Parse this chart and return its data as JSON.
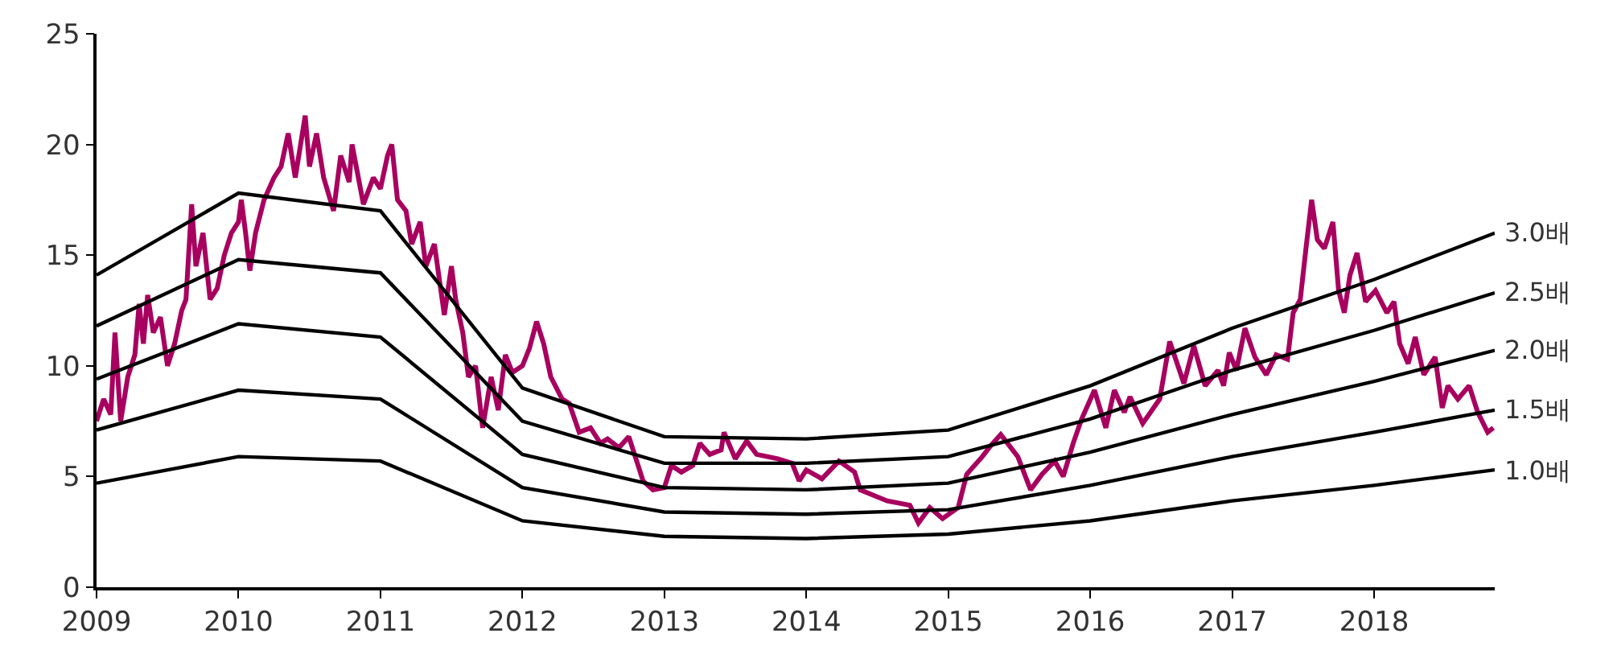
{
  "chart_data": {
    "type": "line",
    "xlim": [
      2009,
      2018.85
    ],
    "xticks": [
      2009,
      2010,
      2011,
      2012,
      2013,
      2014,
      2015,
      2016,
      2017,
      2018
    ],
    "ylim": [
      0,
      25
    ],
    "yticks": [
      0,
      5,
      10,
      15,
      20,
      25
    ],
    "legend": false,
    "marker": "none",
    "line_style": "solid",
    "series": [
      {
        "color": "#a8005f",
        "x": [
          2009.0,
          2009.05,
          2009.1,
          2009.13,
          2009.17,
          2009.22,
          2009.27,
          2009.3,
          2009.33,
          2009.36,
          2009.4,
          2009.45,
          2009.5,
          2009.55,
          2009.6,
          2009.63,
          2009.67,
          2009.7,
          2009.75,
          2009.8,
          2009.85,
          2009.9,
          2009.95,
          2010.0,
          2010.02,
          2010.05,
          2010.08,
          2010.12,
          2010.18,
          2010.25,
          2010.3,
          2010.35,
          2010.4,
          2010.47,
          2010.5,
          2010.55,
          2010.6,
          2010.67,
          2010.72,
          2010.78,
          2010.8,
          2010.88,
          2010.95,
          2011.0,
          2011.05,
          2011.08,
          2011.12,
          2011.18,
          2011.22,
          2011.28,
          2011.32,
          2011.38,
          2011.45,
          2011.5,
          2011.53,
          2011.58,
          2011.62,
          2011.67,
          2011.72,
          2011.78,
          2011.83,
          2011.88,
          2011.93,
          2012.0,
          2012.05,
          2012.1,
          2012.15,
          2012.2,
          2012.28,
          2012.33,
          2012.4,
          2012.48,
          2012.55,
          2012.6,
          2012.68,
          2012.75,
          2012.8,
          2012.85,
          2012.92,
          2013.0,
          2013.05,
          2013.12,
          2013.2,
          2013.25,
          2013.32,
          2013.4,
          2013.42,
          2013.5,
          2013.58,
          2013.65,
          2013.8,
          2013.9,
          2013.95,
          2014.0,
          2014.11,
          2014.23,
          2014.34,
          2014.38,
          2014.57,
          2014.73,
          2014.79,
          2014.87,
          2014.96,
          2015.07,
          2015.13,
          2015.24,
          2015.3,
          2015.37,
          2015.49,
          2015.58,
          2015.66,
          2015.75,
          2015.81,
          2015.88,
          2015.94,
          2016.03,
          2016.11,
          2016.17,
          2016.24,
          2016.28,
          2016.37,
          2016.49,
          2016.56,
          2016.66,
          2016.73,
          2016.81,
          2016.9,
          2016.94,
          2016.98,
          2017.03,
          2017.09,
          2017.16,
          2017.24,
          2017.31,
          2017.39,
          2017.43,
          2017.48,
          2017.52,
          2017.56,
          2017.6,
          2017.65,
          2017.71,
          2017.75,
          2017.79,
          2017.83,
          2017.88,
          2017.94,
          2018.01,
          2018.09,
          2018.14,
          2018.18,
          2018.24,
          2018.29,
          2018.35,
          2018.43,
          2018.48,
          2018.52,
          2018.59,
          2018.67,
          2018.73,
          2018.8,
          2018.84
        ],
        "values": [
          7.5,
          8.5,
          7.8,
          11.5,
          7.5,
          9.5,
          10.5,
          12.8,
          11,
          13.2,
          11.5,
          12.2,
          10,
          11,
          12.5,
          13,
          17.3,
          14.5,
          16,
          13,
          13.5,
          15,
          16,
          16.5,
          17.5,
          16,
          14.3,
          16,
          17.5,
          18.5,
          19,
          20.5,
          18.5,
          21.3,
          19,
          20.5,
          18.5,
          17,
          19.5,
          18.3,
          20,
          17.3,
          18.5,
          18,
          19.5,
          20,
          17.5,
          17,
          15.5,
          16.5,
          14.5,
          15.5,
          12.3,
          14.5,
          13,
          11.5,
          9.5,
          10,
          7.2,
          9.5,
          8,
          10.5,
          9.7,
          10,
          10.8,
          12,
          11,
          9.5,
          8.5,
          8.3,
          7,
          7.2,
          6.5,
          6.7,
          6.3,
          6.8,
          5.8,
          4.8,
          4.4,
          4.5,
          5.5,
          5.2,
          5.5,
          6.5,
          6,
          6.2,
          7,
          5.8,
          6.6,
          6,
          5.8,
          5.6,
          4.8,
          5.3,
          4.9,
          5.7,
          5.2,
          4.4,
          3.9,
          3.7,
          2.9,
          3.6,
          3.1,
          3.6,
          5.1,
          5.9,
          6.4,
          6.9,
          5.9,
          4.4,
          5.1,
          5.7,
          5,
          6.5,
          7.6,
          8.9,
          7.2,
          8.9,
          7.9,
          8.6,
          7.4,
          8.5,
          11.1,
          9.2,
          10.9,
          9.1,
          9.8,
          9.1,
          10.6,
          9.8,
          11.7,
          10.4,
          9.6,
          10.5,
          10.3,
          12.4,
          13,
          15.3,
          17.5,
          15.7,
          15.3,
          16.5,
          13.4,
          12.4,
          14.1,
          15.1,
          12.9,
          13.4,
          12.4,
          12.9,
          11,
          10.1,
          11.3,
          9.6,
          10.4,
          8.1,
          9.1,
          8.5,
          9.1,
          7.9,
          7,
          7.2
        ]
      },
      {
        "name": "3.0배",
        "color": "#000000",
        "x": [
          2009,
          2010,
          2011,
          2012,
          2013,
          2014,
          2015,
          2016,
          2017,
          2018,
          2018.85
        ],
        "values": [
          14.1,
          17.8,
          17.0,
          9.0,
          6.8,
          6.7,
          7.1,
          9.1,
          11.7,
          13.9,
          16.0
        ]
      },
      {
        "name": "2.5배",
        "color": "#000000",
        "x": [
          2009,
          2010,
          2011,
          2012,
          2013,
          2014,
          2015,
          2016,
          2017,
          2018,
          2018.85
        ],
        "values": [
          11.8,
          14.8,
          14.2,
          7.5,
          5.6,
          5.6,
          5.9,
          7.6,
          9.8,
          11.6,
          13.3
        ]
      },
      {
        "name": "2.0배",
        "color": "#000000",
        "x": [
          2009,
          2010,
          2011,
          2012,
          2013,
          2014,
          2015,
          2016,
          2017,
          2018,
          2018.85
        ],
        "values": [
          9.4,
          11.9,
          11.3,
          6.0,
          4.5,
          4.4,
          4.7,
          6.1,
          7.8,
          9.3,
          10.7
        ]
      },
      {
        "name": "1.5배",
        "color": "#000000",
        "x": [
          2009,
          2010,
          2011,
          2012,
          2013,
          2014,
          2015,
          2016,
          2017,
          2018,
          2018.85
        ],
        "values": [
          7.1,
          8.9,
          8.5,
          4.5,
          3.4,
          3.3,
          3.5,
          4.6,
          5.9,
          7.0,
          8.0
        ]
      },
      {
        "name": "1.0배",
        "color": "#000000",
        "x": [
          2009,
          2010,
          2011,
          2012,
          2013,
          2014,
          2015,
          2016,
          2017,
          2018,
          2018.85
        ],
        "values": [
          4.7,
          5.9,
          5.7,
          3.0,
          2.3,
          2.2,
          2.4,
          3.0,
          3.9,
          4.6,
          5.3
        ]
      }
    ]
  }
}
